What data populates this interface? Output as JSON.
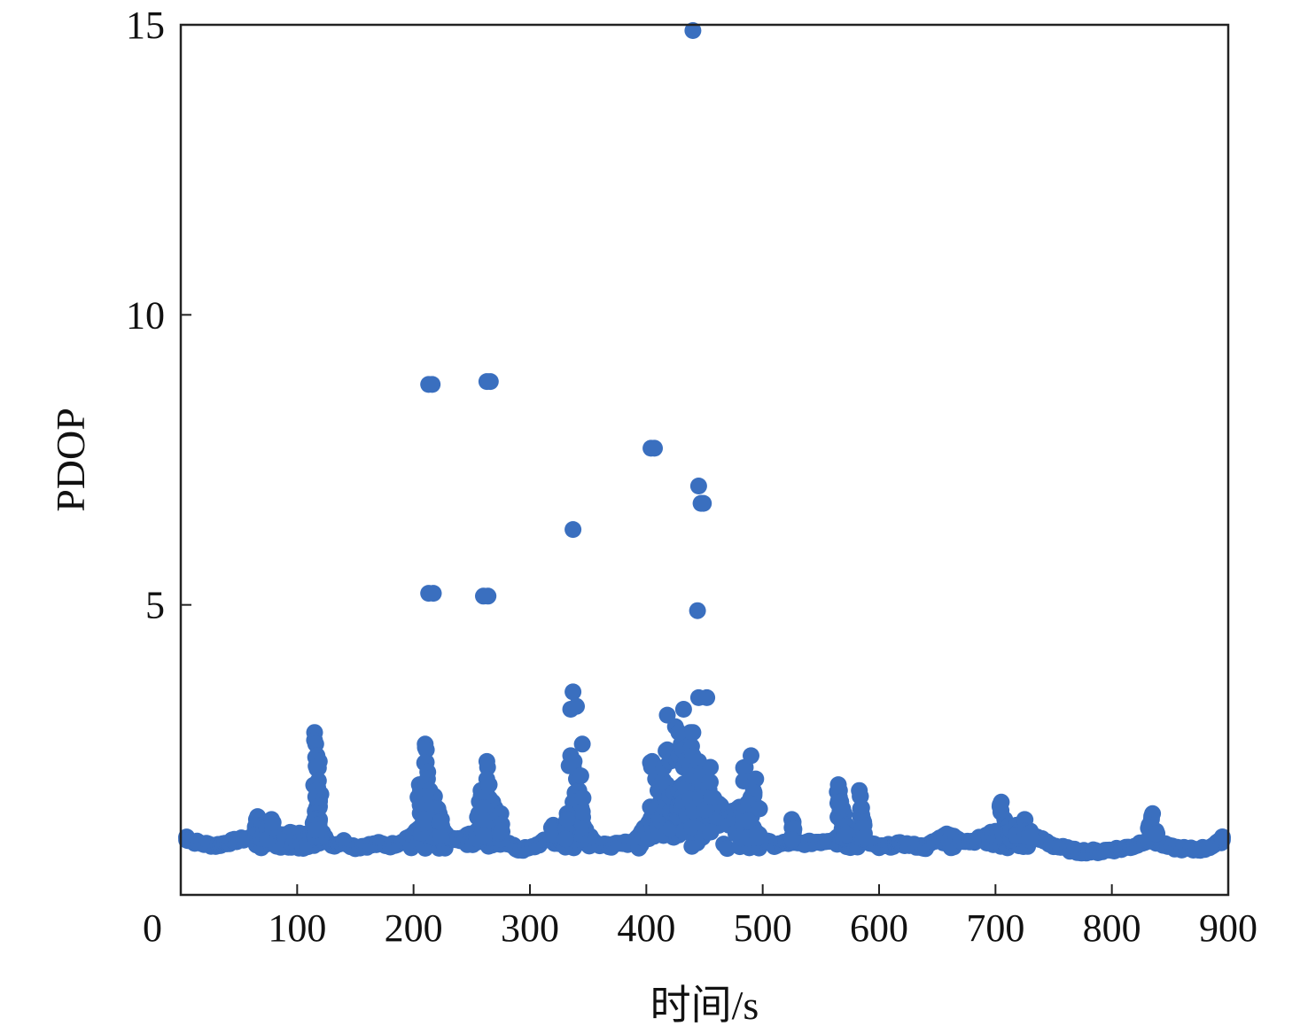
{
  "chart_data": {
    "type": "scatter",
    "title": "",
    "xlabel": "时间/s",
    "ylabel": "PDOP",
    "xlim": [
      0,
      900
    ],
    "ylim": [
      0,
      15
    ],
    "xticks": [
      0,
      100,
      200,
      300,
      400,
      500,
      600,
      700,
      800,
      900
    ],
    "yticks": [
      5,
      10,
      15
    ],
    "grid": false,
    "legend": "none",
    "marker_color": "#3a6fbf",
    "series": [
      {
        "baseline": [
          [
            0,
            1.0
          ],
          [
            10,
            0.92
          ],
          [
            20,
            0.88
          ],
          [
            30,
            0.85
          ],
          [
            40,
            0.9
          ],
          [
            50,
            0.95
          ],
          [
            60,
            0.98
          ],
          [
            70,
            1.05
          ],
          [
            80,
            1.0
          ],
          [
            90,
            1.05
          ],
          [
            100,
            1.05
          ],
          [
            110,
            1.05
          ],
          [
            120,
            1.1
          ],
          [
            130,
            0.85
          ],
          [
            140,
            0.92
          ],
          [
            150,
            0.82
          ],
          [
            160,
            0.85
          ],
          [
            170,
            0.88
          ],
          [
            180,
            0.85
          ],
          [
            190,
            0.92
          ],
          [
            200,
            1.05
          ],
          [
            210,
            1.2
          ],
          [
            220,
            1.3
          ],
          [
            230,
            1.0
          ],
          [
            240,
            0.95
          ],
          [
            250,
            1.05
          ],
          [
            260,
            1.2
          ],
          [
            270,
            1.1
          ],
          [
            280,
            0.9
          ],
          [
            290,
            0.78
          ],
          [
            300,
            0.8
          ],
          [
            310,
            0.9
          ],
          [
            320,
            1.0
          ],
          [
            330,
            1.2
          ],
          [
            340,
            1.4
          ],
          [
            350,
            1.05
          ],
          [
            360,
            0.85
          ],
          [
            370,
            0.85
          ],
          [
            380,
            0.88
          ],
          [
            390,
            0.92
          ],
          [
            400,
            1.2
          ],
          [
            410,
            1.5
          ],
          [
            420,
            1.7
          ],
          [
            430,
            1.9
          ],
          [
            440,
            2.0
          ],
          [
            450,
            1.8
          ],
          [
            460,
            1.6
          ],
          [
            470,
            1.4
          ],
          [
            480,
            1.5
          ],
          [
            490,
            1.2
          ],
          [
            500,
            0.95
          ],
          [
            510,
            0.85
          ],
          [
            520,
            0.9
          ],
          [
            530,
            0.88
          ],
          [
            540,
            0.9
          ],
          [
            550,
            0.92
          ],
          [
            560,
            0.95
          ],
          [
            570,
            1.1
          ],
          [
            580,
            1.05
          ],
          [
            590,
            0.9
          ],
          [
            600,
            0.82
          ],
          [
            610,
            0.85
          ],
          [
            620,
            0.88
          ],
          [
            630,
            0.85
          ],
          [
            640,
            0.82
          ],
          [
            650,
            0.95
          ],
          [
            660,
            1.05
          ],
          [
            670,
            0.95
          ],
          [
            680,
            0.92
          ],
          [
            690,
            1.0
          ],
          [
            700,
            1.1
          ],
          [
            710,
            1.05
          ],
          [
            720,
            1.1
          ],
          [
            730,
            1.0
          ],
          [
            740,
            0.95
          ],
          [
            750,
            0.85
          ],
          [
            760,
            0.8
          ],
          [
            770,
            0.75
          ],
          [
            780,
            0.75
          ],
          [
            790,
            0.75
          ],
          [
            800,
            0.78
          ],
          [
            810,
            0.8
          ],
          [
            820,
            0.85
          ],
          [
            830,
            0.95
          ],
          [
            840,
            0.9
          ],
          [
            850,
            0.82
          ],
          [
            860,
            0.8
          ],
          [
            870,
            0.78
          ],
          [
            880,
            0.8
          ],
          [
            890,
            0.88
          ],
          [
            900,
            1.0
          ]
        ],
        "spikes": [
          [
            65,
            1.3
          ],
          [
            66,
            1.35
          ],
          [
            70,
            1.2
          ],
          [
            75,
            1.2
          ],
          [
            78,
            1.3
          ],
          [
            115,
            2.8
          ],
          [
            116,
            2.6
          ],
          [
            117,
            2.4
          ],
          [
            118,
            2.2
          ],
          [
            119,
            2.3
          ],
          [
            117,
            1.8
          ],
          [
            118,
            1.7
          ],
          [
            119,
            1.6
          ],
          [
            116,
            1.4
          ],
          [
            115,
            1.3
          ],
          [
            117,
            1.2
          ],
          [
            210,
            2.6
          ],
          [
            211,
            2.5
          ],
          [
            205,
            1.9
          ],
          [
            206,
            1.8
          ],
          [
            212,
            2.0
          ],
          [
            214,
            1.8
          ],
          [
            216,
            1.6
          ],
          [
            218,
            1.7
          ],
          [
            220,
            1.5
          ],
          [
            222,
            1.4
          ],
          [
            224,
            1.3
          ],
          [
            208,
            1.5
          ],
          [
            210,
            1.7
          ],
          [
            263,
            2.3
          ],
          [
            258,
            1.8
          ],
          [
            262,
            1.7
          ],
          [
            265,
            1.9
          ],
          [
            268,
            1.6
          ],
          [
            270,
            1.5
          ],
          [
            272,
            1.3
          ],
          [
            275,
            1.4
          ],
          [
            256,
            1.4
          ],
          [
            260,
            1.5
          ],
          [
            335,
            2.4
          ],
          [
            338,
            2.3
          ],
          [
            340,
            2.0
          ],
          [
            342,
            1.8
          ],
          [
            337,
            1.6
          ],
          [
            344,
            1.5
          ],
          [
            345,
            2.6
          ],
          [
            320,
            1.2
          ],
          [
            332,
            1.4
          ],
          [
            405,
            2.3
          ],
          [
            408,
            2.0
          ],
          [
            410,
            1.8
          ],
          [
            412,
            1.6
          ],
          [
            415,
            2.2
          ],
          [
            418,
            2.5
          ],
          [
            420,
            2.3
          ],
          [
            425,
            2.9
          ],
          [
            428,
            2.4
          ],
          [
            430,
            2.6
          ],
          [
            432,
            2.2
          ],
          [
            435,
            2.5
          ],
          [
            438,
            2.8
          ],
          [
            440,
            2.4
          ],
          [
            445,
            2.3
          ],
          [
            448,
            2.1
          ],
          [
            450,
            1.8
          ],
          [
            455,
            2.2
          ],
          [
            485,
            2.2
          ],
          [
            490,
            2.4
          ],
          [
            492,
            1.8
          ],
          [
            494,
            2.0
          ],
          [
            488,
            1.6
          ],
          [
            496,
            1.5
          ],
          [
            525,
            1.3
          ],
          [
            526,
            1.2
          ],
          [
            565,
            1.9
          ],
          [
            566,
            1.8
          ],
          [
            567,
            1.6
          ],
          [
            568,
            1.5
          ],
          [
            569,
            1.3
          ],
          [
            570,
            1.4
          ],
          [
            572,
            1.2
          ],
          [
            583,
            1.8
          ],
          [
            584,
            1.7
          ],
          [
            585,
            1.5
          ],
          [
            586,
            1.3
          ],
          [
            705,
            1.6
          ],
          [
            708,
            1.3
          ],
          [
            712,
            1.2
          ],
          [
            718,
            1.2
          ],
          [
            725,
            1.3
          ],
          [
            730,
            1.1
          ],
          [
            835,
            1.4
          ],
          [
            832,
            1.2
          ],
          [
            838,
            1.1
          ]
        ],
        "outliers": [
          [
            440,
            14.9
          ],
          [
            213,
            8.8
          ],
          [
            216,
            8.8
          ],
          [
            263,
            8.85
          ],
          [
            266,
            8.85
          ],
          [
            404,
            7.7
          ],
          [
            407,
            7.7
          ],
          [
            445,
            7.05
          ],
          [
            447,
            6.75
          ],
          [
            449,
            6.75
          ],
          [
            337,
            6.3
          ],
          [
            213,
            5.2
          ],
          [
            217,
            5.2
          ],
          [
            260,
            5.15
          ],
          [
            264,
            5.15
          ],
          [
            444,
            4.9
          ],
          [
            337,
            3.5
          ],
          [
            335,
            3.2
          ],
          [
            340,
            3.25
          ],
          [
            445,
            3.4
          ],
          [
            452,
            3.4
          ],
          [
            432,
            3.2
          ],
          [
            418,
            3.1
          ],
          [
            428,
            2.8
          ],
          [
            440,
            2.8
          ]
        ]
      }
    ]
  }
}
